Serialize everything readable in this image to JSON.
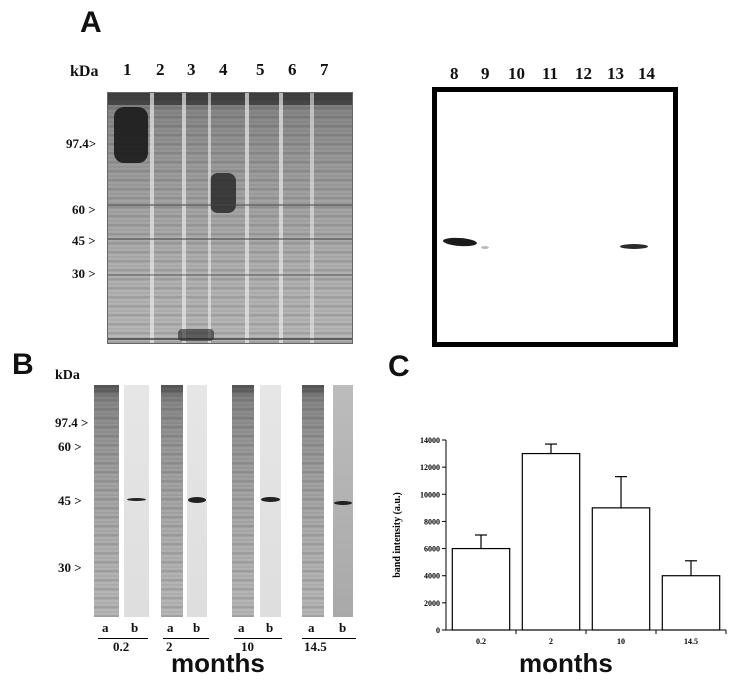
{
  "panel_a": {
    "letter": "A",
    "kda_label": "kDa",
    "gel_lanes": [
      "1",
      "2",
      "3",
      "4",
      "5",
      "6",
      "7"
    ],
    "blot_lanes": [
      "8",
      "9",
      "10",
      "11",
      "12",
      "13",
      "14"
    ],
    "markers": [
      "97.4>",
      "60  >",
      "45  >",
      "30  >"
    ]
  },
  "panel_b": {
    "letter": "B",
    "kda_label": "kDa",
    "markers": [
      "97.4 >",
      "60 >",
      "45 >",
      "30 >"
    ],
    "groups": [
      {
        "a": "a",
        "b": "b",
        "time": "0.2"
      },
      {
        "a": "a",
        "b": "b",
        "time": "2"
      },
      {
        "a": "a",
        "b": "b",
        "time": "10"
      },
      {
        "a": "a",
        "b": "b",
        "time": "14.5"
      }
    ],
    "xlabel": "months"
  },
  "panel_c": {
    "letter": "C",
    "xlabel": "months"
  },
  "chart_data": {
    "type": "bar",
    "categories": [
      "0.2",
      "2",
      "10",
      "14.5"
    ],
    "values": [
      6000,
      13000,
      9000,
      4000
    ],
    "errors": [
      1000,
      700,
      2300,
      1100
    ],
    "title": "",
    "xlabel": "months",
    "ylabel": "band intensity (a.u.)",
    "ylim": [
      0,
      14000
    ],
    "yticks": [
      "0",
      "2000",
      "4000",
      "6000",
      "8000",
      "10000",
      "12000",
      "14000"
    ],
    "grid": false
  }
}
